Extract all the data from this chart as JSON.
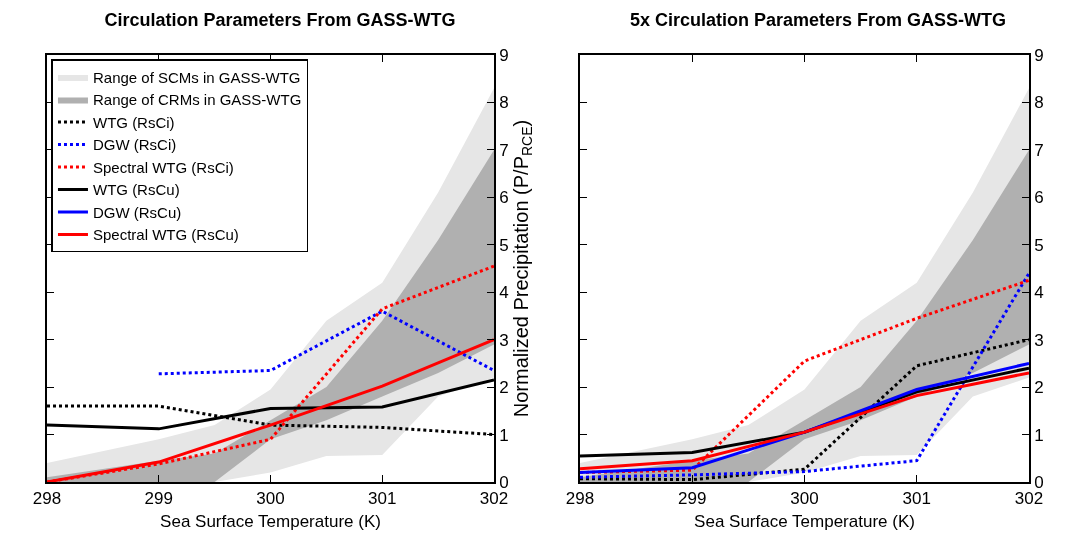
{
  "chart_data": [
    {
      "type": "line",
      "title": "Circulation Parameters From GASS-WTG",
      "xlabel": "Sea Surface Temperature (K)",
      "ylabel": "Normalized Precipitation (P/P$_{RCE}$)",
      "x": [
        298,
        299,
        300,
        301,
        302
      ],
      "xlim": [
        298,
        302
      ],
      "xticks": [
        298,
        299,
        300,
        301,
        302
      ],
      "ylim": [
        0,
        9
      ],
      "yticks": [
        0,
        1,
        2,
        3,
        4,
        5,
        6,
        7,
        8,
        9
      ],
      "grid": false,
      "legend": "top left",
      "marker": "none",
      "series": [
        {
          "name": "Range of SCMs in GASS-WTG",
          "type": "area",
          "color": "#e6e6e6",
          "line_style": "solid",
          "x": [
            298,
            299,
            299.5,
            300,
            300.5,
            301,
            301.5,
            302
          ],
          "values": [
            null,
            null,
            null,
            null,
            null,
            null,
            null,
            null
          ],
          "lower": [
            0,
            0,
            0,
            0.2,
            0.55,
            0.57,
            1.8,
            2.2
          ],
          "upper": [
            0.4,
            0.9,
            1.2,
            1.95,
            3.4,
            4.2,
            6.1,
            8.3
          ]
        },
        {
          "name": "Range of CRMs in GASS-WTG",
          "type": "area",
          "color": "#b0b0b0",
          "line_style": "dashed",
          "x": [
            298,
            299,
            299.5,
            300,
            300.5,
            301,
            301.5,
            302
          ],
          "values": [
            null,
            null,
            null,
            null,
            null,
            null,
            null,
            null
          ],
          "lower": [
            0,
            0,
            0,
            0.9,
            1.3,
            1.8,
            2.3,
            2.9
          ],
          "upper": [
            0.1,
            0.45,
            0.6,
            1.3,
            2.0,
            3.4,
            5.1,
            7.0
          ]
        },
        {
          "name": "WTG (RsCi)",
          "color": "#000000",
          "line_style": "dotted",
          "values": [
            1.6,
            1.6,
            1.2,
            1.15,
            1.0
          ]
        },
        {
          "name": "DGW (RsCi)",
          "color": "#0000ff",
          "line_style": "dotted",
          "values": [
            null,
            2.28,
            2.35,
            3.6,
            2.35
          ]
        },
        {
          "name": "Spectral WTG (RsCi)",
          "color": "#ff0000",
          "line_style": "dotted",
          "values": [
            0,
            0.38,
            0.9,
            3.65,
            4.55
          ]
        },
        {
          "name": "WTG (RsCu)",
          "color": "#000000",
          "line_style": "solid",
          "values": [
            1.2,
            1.12,
            1.55,
            1.58,
            2.15
          ]
        },
        {
          "name": "DGW (RsCu)",
          "color": "#0000ff",
          "line_style": "solid",
          "values": [
            null,
            null,
            null,
            null,
            null
          ]
        },
        {
          "name": "Spectral WTG (RsCu)",
          "color": "#ff0000",
          "line_style": "solid",
          "values": [
            0,
            0.42,
            1.2,
            2.02,
            3.0
          ]
        }
      ]
    },
    {
      "type": "line",
      "title": "5x Circulation Parameters From GASS-WTG",
      "xlabel": "Sea Surface Temperature (K)",
      "x": [
        298,
        299,
        300,
        301,
        302
      ],
      "xlim": [
        298,
        302
      ],
      "xticks": [
        298,
        299,
        300,
        301,
        302
      ],
      "ylim": [
        0,
        9
      ],
      "yticks": [
        0,
        1,
        2,
        3,
        4,
        5,
        6,
        7,
        8,
        9
      ],
      "grid": false,
      "legend": false,
      "marker": "none",
      "series": [
        {
          "type": "area",
          "color": "#e6e6e6",
          "line_style": "solid",
          "x": [
            298,
            299,
            299.5,
            300,
            300.5,
            301,
            301.5,
            302
          ],
          "values": [
            null,
            null,
            null,
            null,
            null,
            null,
            null,
            null
          ],
          "lower": [
            0,
            0,
            0,
            0.2,
            0.55,
            0.57,
            1.8,
            2.2
          ],
          "upper": [
            0.4,
            0.9,
            1.2,
            1.95,
            3.4,
            4.2,
            6.1,
            8.3
          ]
        },
        {
          "type": "area",
          "color": "#b0b0b0",
          "line_style": "dashed",
          "x": [
            298,
            299,
            299.5,
            300,
            300.5,
            301,
            301.5,
            302
          ],
          "values": [
            null,
            null,
            null,
            null,
            null,
            null,
            null,
            null
          ],
          "lower": [
            0,
            0,
            0,
            0.9,
            1.3,
            1.8,
            2.3,
            2.9
          ],
          "upper": [
            0.1,
            0.45,
            0.6,
            1.3,
            2.0,
            3.4,
            5.1,
            7.0
          ]
        },
        {
          "color": "#000000",
          "line_style": "dotted",
          "values": [
            0.07,
            0.05,
            0.27,
            2.45,
            3.0
          ]
        },
        {
          "color": "#0000ff",
          "line_style": "dotted",
          "values": [
            0.1,
            0.15,
            0.22,
            0.45,
            4.4
          ]
        },
        {
          "color": "#ff0000",
          "line_style": "dotted",
          "values": [
            0.2,
            0.25,
            2.55,
            3.45,
            4.25
          ]
        },
        {
          "color": "#000000",
          "line_style": "solid",
          "values": [
            0.55,
            0.62,
            1.05,
            1.9,
            2.4
          ]
        },
        {
          "color": "#0000ff",
          "line_style": "solid",
          "values": [
            0.2,
            0.3,
            1.05,
            1.95,
            2.5
          ]
        },
        {
          "color": "#ff0000",
          "line_style": "solid",
          "values": [
            0.28,
            0.45,
            1.05,
            1.82,
            2.3
          ]
        }
      ]
    }
  ]
}
